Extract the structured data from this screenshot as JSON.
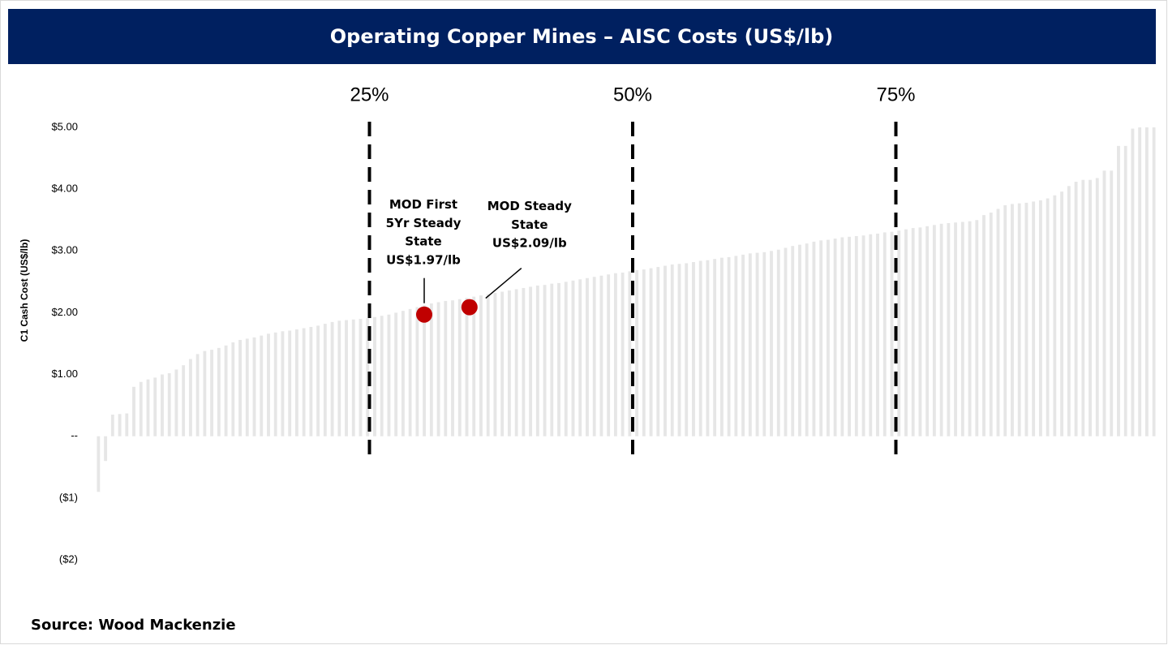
{
  "chart_data": {
    "type": "bar",
    "title": "Operating Copper Mines – AISC Costs (US$/lb)",
    "y_label": "C1 Cash Cost (US$/lb)",
    "source": "Source: Wood Mackenzie",
    "color": "#e6e6e6",
    "ylim": [
      -2,
      5
    ],
    "yticks": [
      {
        "value": 5,
        "label": "$5.00"
      },
      {
        "value": 4,
        "label": "$4.00"
      },
      {
        "value": 3,
        "label": "$3.00"
      },
      {
        "value": 2,
        "label": "$2.00"
      },
      {
        "value": 1,
        "label": "$1.00"
      },
      {
        "value": 0,
        "label": "--"
      },
      {
        "value": -1,
        "label": "($1)"
      },
      {
        "value": -2,
        "label": "($2)"
      }
    ],
    "values": [
      -0.9,
      -0.4,
      0.35,
      0.36,
      0.37,
      0.8,
      0.88,
      0.92,
      0.95,
      1.0,
      1.02,
      1.08,
      1.15,
      1.25,
      1.33,
      1.38,
      1.4,
      1.43,
      1.47,
      1.52,
      1.56,
      1.58,
      1.6,
      1.63,
      1.66,
      1.68,
      1.7,
      1.71,
      1.73,
      1.75,
      1.77,
      1.79,
      1.82,
      1.85,
      1.87,
      1.88,
      1.89,
      1.9,
      1.91,
      1.93,
      1.95,
      1.97,
      2.0,
      2.03,
      2.06,
      2.09,
      2.12,
      2.15,
      2.17,
      2.19,
      2.2,
      2.22,
      2.24,
      2.26,
      2.28,
      2.3,
      2.32,
      2.34,
      2.36,
      2.38,
      2.4,
      2.42,
      2.44,
      2.45,
      2.47,
      2.48,
      2.5,
      2.52,
      2.54,
      2.56,
      2.58,
      2.6,
      2.62,
      2.64,
      2.65,
      2.67,
      2.69,
      2.7,
      2.72,
      2.74,
      2.76,
      2.78,
      2.79,
      2.8,
      2.82,
      2.84,
      2.85,
      2.87,
      2.89,
      2.9,
      2.92,
      2.94,
      2.96,
      2.97,
      2.98,
      3.0,
      3.02,
      3.05,
      3.08,
      3.1,
      3.12,
      3.15,
      3.17,
      3.18,
      3.2,
      3.22,
      3.23,
      3.24,
      3.25,
      3.27,
      3.28,
      3.3,
      3.31,
      3.33,
      3.35,
      3.37,
      3.38,
      3.4,
      3.42,
      3.44,
      3.45,
      3.46,
      3.47,
      3.48,
      3.5,
      3.58,
      3.62,
      3.68,
      3.74,
      3.76,
      3.77,
      3.78,
      3.8,
      3.82,
      3.85,
      3.9,
      3.96,
      4.05,
      4.12,
      4.15,
      4.15,
      4.18,
      4.3,
      4.3,
      4.7,
      4.7,
      4.98,
      5.0,
      5.0,
      5.0
    ],
    "quartiles": [
      {
        "value": 25,
        "label": "25%"
      },
      {
        "value": 50,
        "label": "50%"
      },
      {
        "value": 75,
        "label": "75%"
      }
    ],
    "points": [
      {
        "x": 30.2,
        "value": 1.97,
        "color": "#c00000",
        "label_lines": [
          "MOD First",
          "5Yr Steady",
          "State",
          "US$1.97/lb"
        ]
      },
      {
        "x": 34.5,
        "value": 2.09,
        "color": "#c00000",
        "label_lines": [
          "MOD Steady",
          "State",
          "US$2.09/lb"
        ]
      }
    ]
  }
}
